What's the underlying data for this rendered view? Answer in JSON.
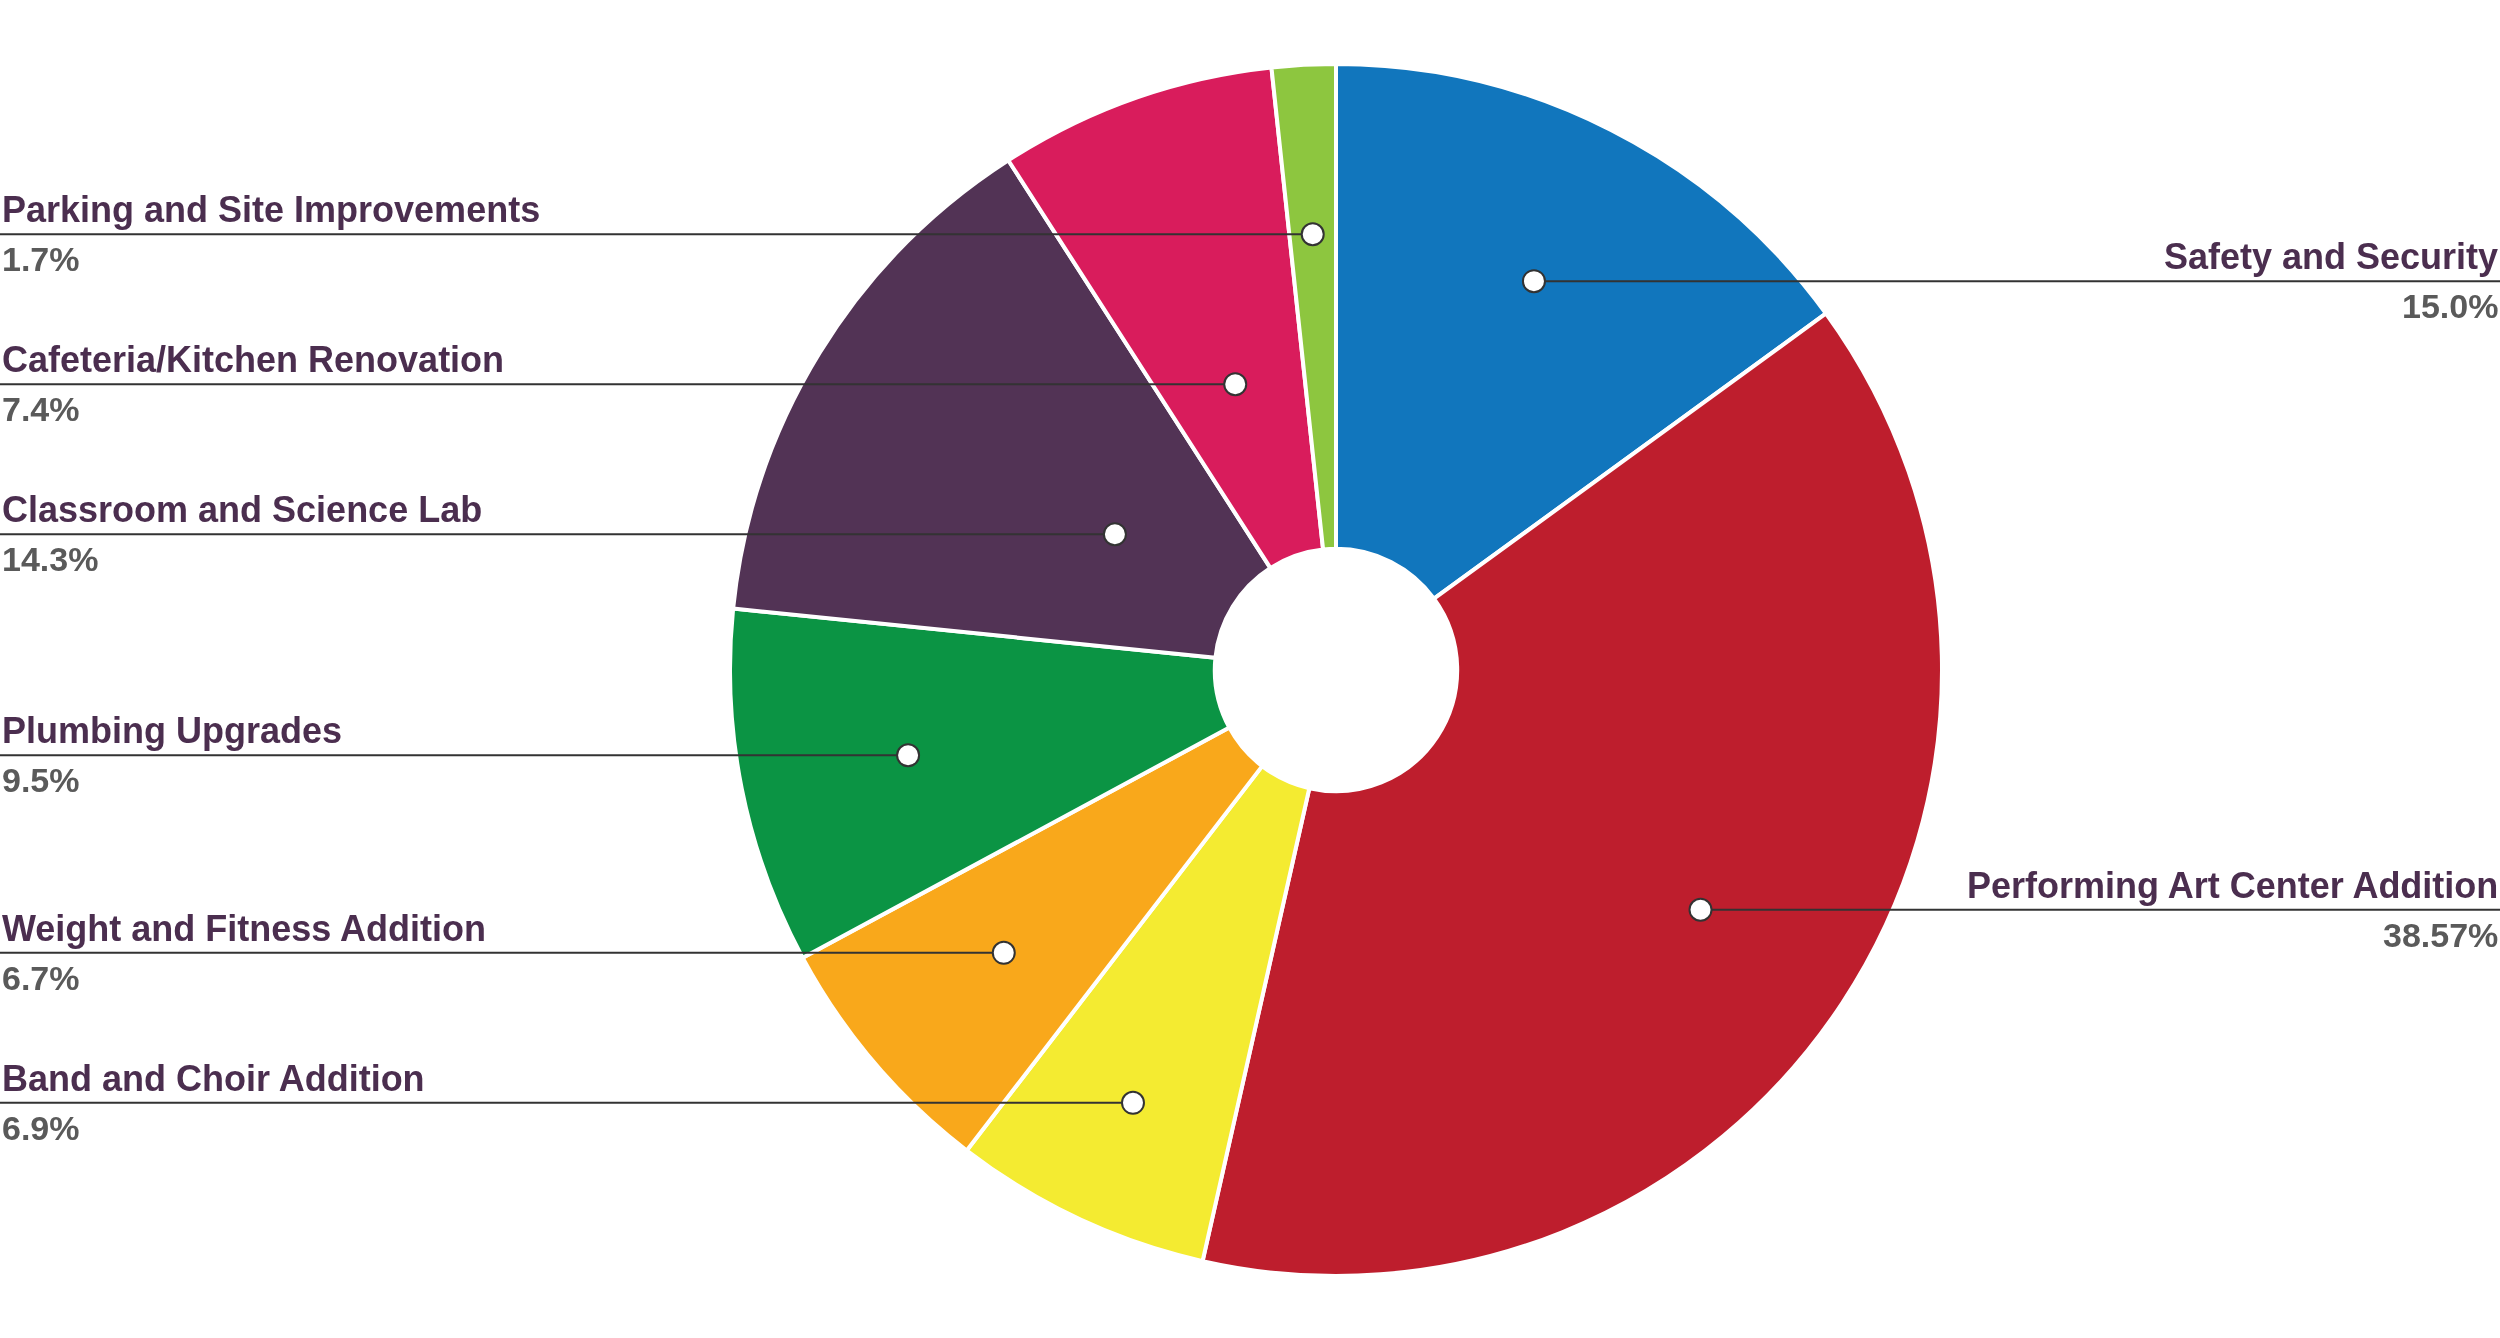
{
  "chart_data": {
    "type": "donut",
    "categories": [
      "Safety and Security",
      "Performing Art Center Addition",
      "Band and Choir Addition",
      "Weight and Fitness Addition",
      "Plumbing Upgrades",
      "Classroom and Science Lab",
      "Cafeteria/Kitchen Renovation",
      "Parking and Site Improvements"
    ],
    "values": [
      15.0,
      38.57,
      6.9,
      6.7,
      9.5,
      14.3,
      7.4,
      1.7
    ],
    "value_labels": [
      "15.0%",
      "38.57%",
      "6.9%",
      "6.7%",
      "9.5%",
      "14.3%",
      "7.4%",
      "1.7%"
    ],
    "colors": [
      "#1176bd",
      "#be1e2d",
      "#f4eb31",
      "#f9a81b",
      "#0b9444",
      "#523355",
      "#d91c5c",
      "#8dc63f"
    ],
    "legend": false
  }
}
